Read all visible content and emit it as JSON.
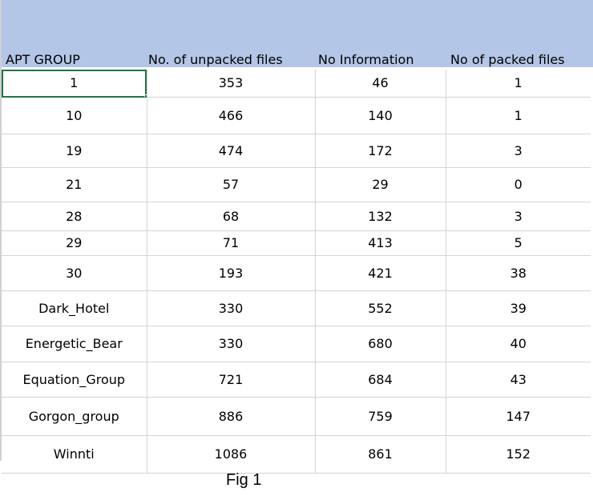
{
  "table": {
    "headers": [
      "APT GROUP",
      "No. of unpacked files",
      "No Information",
      "No of packed files"
    ],
    "rows": [
      [
        "1",
        "353",
        "46",
        "1"
      ],
      [
        "10",
        "466",
        "140",
        "1"
      ],
      [
        "19",
        "474",
        "172",
        "3"
      ],
      [
        "21",
        "57",
        "29",
        "0"
      ],
      [
        "28",
        "68",
        "132",
        "3"
      ],
      [
        "29",
        "71",
        "413",
        "5"
      ],
      [
        "30",
        "193",
        "421",
        "38"
      ],
      [
        "Dark_Hotel",
        "330",
        "552",
        "39"
      ],
      [
        "Energetic_Bear",
        "330",
        "680",
        "40"
      ],
      [
        "Equation_Group",
        "721",
        "684",
        "43"
      ],
      [
        "Gorgon_group",
        "886",
        "759",
        "147"
      ],
      [
        "Winnti",
        "1086",
        "861",
        "152"
      ]
    ]
  },
  "caption": "Fig 1",
  "colors": {
    "header_fill": "#b4c6e7",
    "active_cell_border": "#217346",
    "gridline": "#d4d4d4"
  }
}
